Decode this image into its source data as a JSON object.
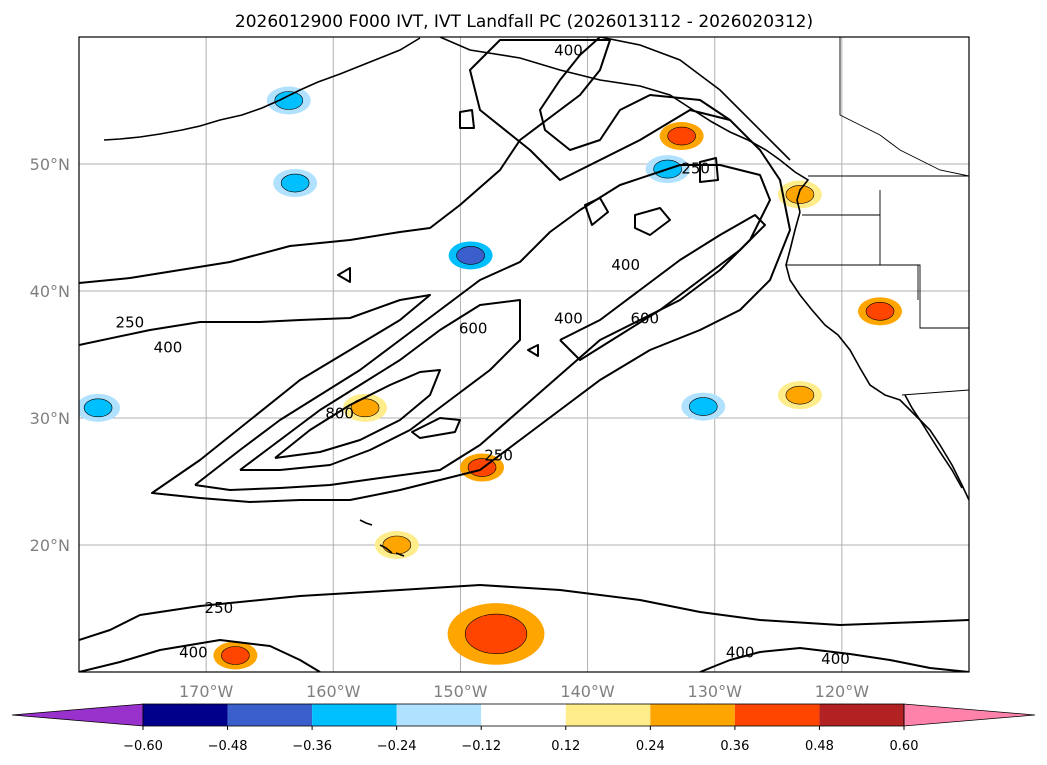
{
  "chart_data": {
    "type": "map-contour",
    "title": "2026012900 F000 IVT, IVT Landfall PC (2026013112 - 2026020312)",
    "latitude_ticks": [
      "50°N",
      "40°N",
      "30°N",
      "20°N"
    ],
    "longitude_ticks": [
      "170°W",
      "160°W",
      "150°W",
      "140°W",
      "130°W",
      "120°W"
    ],
    "extent": {
      "lon_min": -180,
      "lon_max": -110,
      "lat_min": 10,
      "lat_max": 60
    },
    "colorbar": {
      "levels": [
        "−0.60",
        "−0.48",
        "−0.36",
        "−0.24",
        "−0.12",
        "0.12",
        "0.24",
        "0.36",
        "0.48",
        "0.60"
      ],
      "colors": [
        "#9932cc",
        "#00008b",
        "#3a5fcd",
        "#00bfff",
        "#b0e2ff",
        "#ffffff",
        "#ffec8b",
        "#ffa500",
        "#ff4500",
        "#b22222",
        "#ff82ab"
      ],
      "extend": "both"
    },
    "contours": {
      "levels": [
        250,
        400,
        600,
        800
      ],
      "labels": [
        {
          "text": "400",
          "lon": -141.5,
          "lat": 58.9
        },
        {
          "text": "250",
          "lon": -131.5,
          "lat": 49.6
        },
        {
          "text": "400",
          "lon": -137.0,
          "lat": 42.0
        },
        {
          "text": "250",
          "lon": -176.0,
          "lat": 37.5
        },
        {
          "text": "400",
          "lon": -173.0,
          "lat": 35.5
        },
        {
          "text": "600",
          "lon": -149.0,
          "lat": 37.0
        },
        {
          "text": "400",
          "lon": -141.5,
          "lat": 37.8
        },
        {
          "text": "600",
          "lon": -135.5,
          "lat": 37.8
        },
        {
          "text": "800",
          "lon": -159.5,
          "lat": 30.3
        },
        {
          "text": "250",
          "lon": -147.0,
          "lat": 27.0
        },
        {
          "text": "250",
          "lon": -169.0,
          "lat": 15.0
        },
        {
          "text": "400",
          "lon": -171.0,
          "lat": 11.5
        },
        {
          "text": "400",
          "lon": -128.0,
          "lat": 11.5
        },
        {
          "text": "400",
          "lon": -120.5,
          "lat": 11.0
        }
      ]
    },
    "shaded_patches": [
      {
        "lon": -163.5,
        "lat": 55.0,
        "level": "−0.36",
        "color": "#00bfff"
      },
      {
        "lon": -163.0,
        "lat": 48.5,
        "level": "−0.36",
        "color": "#00bfff"
      },
      {
        "lon": -149.2,
        "lat": 42.8,
        "level": "−0.48",
        "color": "#3a5fcd"
      },
      {
        "lon": -133.7,
        "lat": 49.6,
        "level": "−0.36",
        "color": "#00bfff"
      },
      {
        "lon": -130.9,
        "lat": 30.9,
        "level": "−0.36",
        "color": "#00bfff"
      },
      {
        "lon": -178.5,
        "lat": 30.8,
        "level": "−0.36",
        "color": "#00bfff"
      },
      {
        "lon": -147.2,
        "lat": 13.0,
        "level": "0.36",
        "color": "#ff4500"
      },
      {
        "lon": -167.7,
        "lat": 11.3,
        "level": "0.36",
        "color": "#ff4500"
      },
      {
        "lon": -148.3,
        "lat": 26.1,
        "level": "0.36",
        "color": "#ff4500"
      },
      {
        "lon": -132.6,
        "lat": 52.2,
        "level": "0.36",
        "color": "#ff4500"
      },
      {
        "lon": -117.0,
        "lat": 38.4,
        "level": "0.36",
        "color": "#ff4500"
      },
      {
        "lon": -155.0,
        "lat": 20.0,
        "level": "0.24",
        "color": "#ffa500"
      },
      {
        "lon": -157.5,
        "lat": 30.8,
        "level": "0.24",
        "color": "#ffa500"
      },
      {
        "lon": -123.3,
        "lat": 31.8,
        "level": "0.24",
        "color": "#ffa500"
      },
      {
        "lon": -123.3,
        "lat": 47.6,
        "level": "0.24",
        "color": "#ffa500"
      }
    ]
  }
}
